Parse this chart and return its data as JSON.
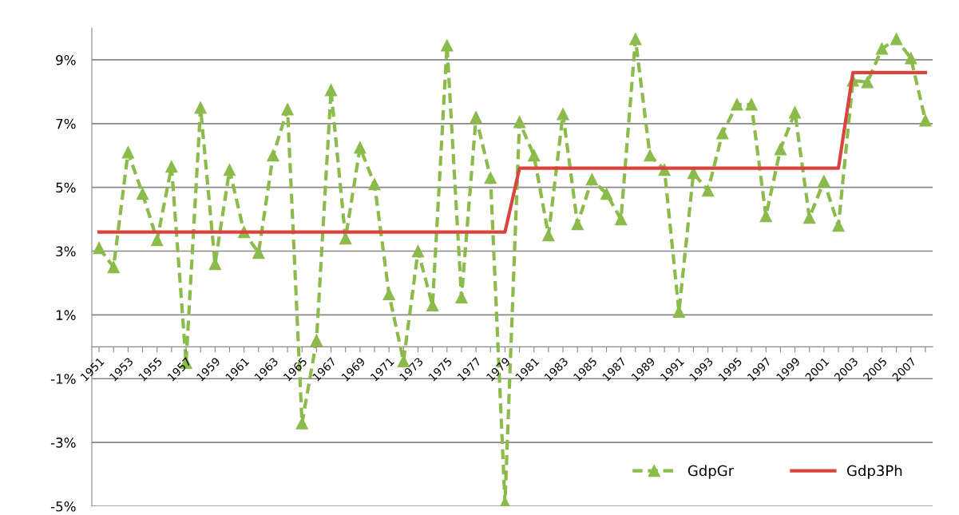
{
  "chart_data": {
    "type": "line",
    "categories": [
      "1951",
      null,
      "1953",
      null,
      "1955",
      null,
      "1957",
      null,
      "1959",
      null,
      "1961",
      null,
      "1963",
      null,
      "1965",
      null,
      "1967",
      null,
      "1969",
      null,
      "1971",
      null,
      "1973",
      null,
      "1975",
      null,
      "1977",
      null,
      "1979",
      null,
      "1981",
      null,
      "1983",
      null,
      "1985",
      null,
      "1987",
      null,
      "1989",
      null,
      "1991",
      null,
      "1993",
      null,
      "1995",
      null,
      "1997",
      null,
      "1999",
      null,
      "2001",
      null,
      "2003",
      null,
      "2005",
      null,
      "2007",
      null
    ],
    "series": [
      {
        "name": "GdpGr",
        "color": "#8bbb4b",
        "marker": "triangle",
        "line_style": "dashed",
        "values": [
          3.1,
          2.5,
          6.1,
          4.8,
          3.35,
          5.65,
          -0.5,
          7.5,
          2.6,
          5.55,
          3.6,
          2.95,
          6.0,
          7.45,
          -2.4,
          0.2,
          8.05,
          3.4,
          6.25,
          5.1,
          1.65,
          -0.45,
          3.0,
          1.3,
          9.45,
          1.55,
          7.2,
          5.3,
          -4.9,
          7.05,
          6.0,
          3.5,
          7.3,
          3.85,
          5.25,
          4.8,
          4.0,
          9.65,
          6.0,
          5.55,
          1.1,
          5.45,
          4.9,
          6.7,
          7.6,
          7.6,
          4.1,
          6.2,
          7.35,
          4.05,
          5.2,
          3.8,
          8.35,
          8.3,
          9.35,
          9.65,
          9.05,
          7.1
        ]
      },
      {
        "name": "Gdp3Ph",
        "color": "#d9443f",
        "marker": "none",
        "line_style": "solid",
        "values": [
          3.6,
          3.6,
          3.6,
          3.6,
          3.6,
          3.6,
          3.6,
          3.6,
          3.6,
          3.6,
          3.6,
          3.6,
          3.6,
          3.6,
          3.6,
          3.6,
          3.6,
          3.6,
          3.6,
          3.6,
          3.6,
          3.6,
          3.6,
          3.6,
          3.6,
          3.6,
          3.6,
          3.6,
          3.6,
          5.6,
          5.6,
          5.6,
          5.6,
          5.6,
          5.6,
          5.6,
          5.6,
          5.6,
          5.6,
          5.6,
          5.6,
          5.6,
          5.6,
          5.6,
          5.6,
          5.6,
          5.6,
          5.6,
          5.6,
          5.6,
          5.6,
          5.6,
          8.6,
          8.6,
          8.6,
          8.6,
          8.6,
          8.6
        ]
      }
    ],
    "ylim": [
      -5,
      10
    ],
    "yticks": [
      {
        "value": -5,
        "label": "-5%"
      },
      {
        "value": -3,
        "label": "-3%"
      },
      {
        "value": -1,
        "label": "-1%"
      },
      {
        "value": 1,
        "label": "1%"
      },
      {
        "value": 3,
        "label": "3%"
      },
      {
        "value": 5,
        "label": "5%"
      },
      {
        "value": 7,
        "label": "7%"
      },
      {
        "value": 9,
        "label": "9%"
      }
    ],
    "grid": "y",
    "legend": "bottom right"
  }
}
